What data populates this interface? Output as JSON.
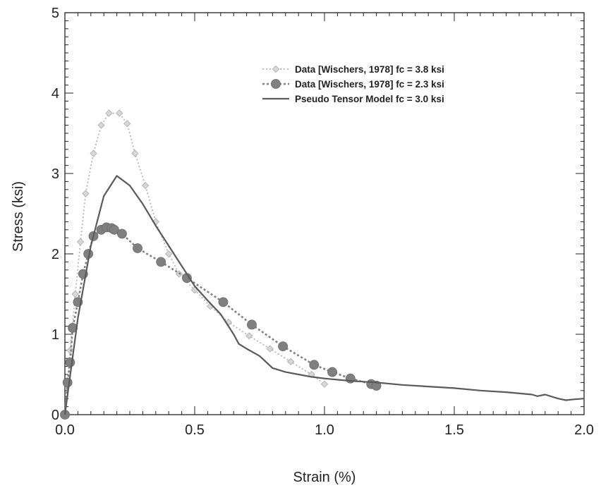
{
  "chart_data": {
    "type": "line",
    "title": "",
    "xlabel": "Strain (%)",
    "ylabel": "Stress (ksi)",
    "xlim": [
      0,
      2.0
    ],
    "ylim": [
      0,
      5
    ],
    "x_ticks": [
      "0.0",
      "0.5",
      "1.0",
      "1.5",
      "2.0"
    ],
    "y_ticks": [
      "0",
      "1",
      "2",
      "3",
      "4",
      "5"
    ],
    "grid": false,
    "legend_position": "top-right",
    "series": [
      {
        "name": "Data [Wischers, 1978] fc = 3.8 ksi",
        "style": "dotted-diamond",
        "color": "#b5b5b5",
        "x": [
          0.0,
          0.02,
          0.04,
          0.06,
          0.08,
          0.11,
          0.14,
          0.17,
          0.21,
          0.24,
          0.27,
          0.31,
          0.35,
          0.4,
          0.44,
          0.5,
          0.56,
          0.63,
          0.71,
          0.79,
          0.87,
          0.95,
          1.0
        ],
        "y": [
          0.0,
          0.8,
          1.5,
          2.15,
          2.75,
          3.25,
          3.6,
          3.75,
          3.75,
          3.62,
          3.25,
          2.85,
          2.4,
          2.0,
          1.75,
          1.55,
          1.35,
          1.15,
          0.98,
          0.82,
          0.66,
          0.5,
          0.38
        ]
      },
      {
        "name": "Data [Wischers, 1978] fc = 2.3 ksi",
        "style": "dotted-circle",
        "color": "#808080",
        "x": [
          0.0,
          0.01,
          0.02,
          0.03,
          0.05,
          0.07,
          0.09,
          0.11,
          0.14,
          0.16,
          0.18,
          0.19,
          0.22,
          0.28,
          0.37,
          0.47,
          0.61,
          0.72,
          0.84,
          0.96,
          1.03,
          1.1,
          1.18,
          1.2
        ],
        "y": [
          0.0,
          0.4,
          0.65,
          1.08,
          1.4,
          1.75,
          2.0,
          2.22,
          2.3,
          2.33,
          2.32,
          2.3,
          2.25,
          2.07,
          1.9,
          1.7,
          1.4,
          1.12,
          0.85,
          0.62,
          0.53,
          0.45,
          0.38,
          0.36
        ]
      },
      {
        "name": "Pseudo Tensor Model fc = 3.0 ksi",
        "style": "solid",
        "color": "#5a5a5a",
        "x": [
          0.0,
          0.05,
          0.1,
          0.15,
          0.2,
          0.25,
          0.3,
          0.35,
          0.4,
          0.45,
          0.5,
          0.55,
          0.6,
          0.65,
          0.67,
          0.7,
          0.75,
          0.8,
          0.85,
          0.9,
          0.95,
          1.0,
          1.1,
          1.2,
          1.3,
          1.4,
          1.5,
          1.6,
          1.7,
          1.8,
          1.82,
          1.85,
          1.9,
          1.93,
          1.96,
          2.0
        ],
        "y": [
          0.0,
          1.2,
          2.1,
          2.72,
          2.97,
          2.85,
          2.62,
          2.35,
          2.1,
          1.85,
          1.6,
          1.42,
          1.25,
          1.0,
          0.88,
          0.82,
          0.73,
          0.58,
          0.53,
          0.5,
          0.47,
          0.45,
          0.42,
          0.4,
          0.37,
          0.35,
          0.33,
          0.3,
          0.28,
          0.25,
          0.23,
          0.25,
          0.2,
          0.18,
          0.19,
          0.2
        ]
      }
    ]
  }
}
